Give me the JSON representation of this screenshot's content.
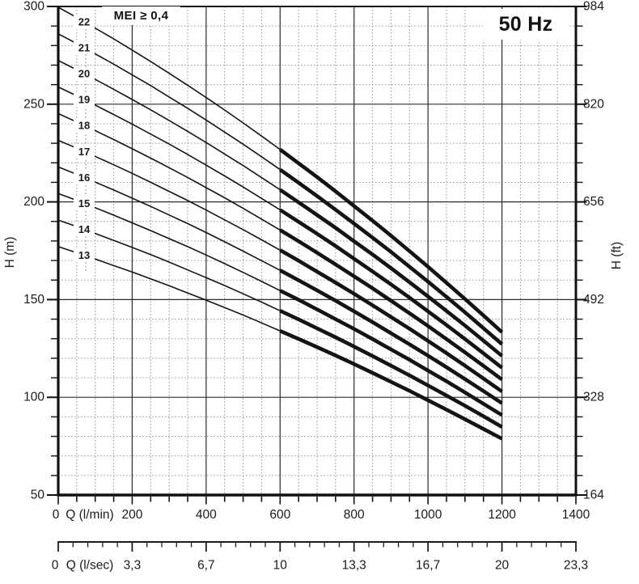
{
  "chart_data": {
    "type": "line",
    "title": "50 Hz",
    "annotation": "MEI ≥ 0,4",
    "axes": {
      "x_primary": {
        "label": "Q (l/min)",
        "min": 0,
        "max": 1400,
        "minor_step": 50,
        "major_ticks": [
          0,
          200,
          400,
          600,
          800,
          1000,
          1200,
          1400
        ],
        "tick_labels": [
          "0",
          "200",
          "400",
          "600",
          "800",
          "1000",
          "1200",
          "1400"
        ]
      },
      "x_secondary": {
        "label": "Q (l/sec)",
        "minor_divisions": 5,
        "tick_labels": [
          "0",
          "3,3",
          "6,7",
          "10",
          "13,3",
          "16,7",
          "20",
          "23,3"
        ]
      },
      "y_left": {
        "label": "H (m)",
        "min": 50,
        "max": 300,
        "major_step": 50,
        "minor_step": 10,
        "tick_values": [
          300,
          250,
          200,
          150,
          100,
          50
        ],
        "tick_labels": [
          "300",
          "250",
          "200",
          "150",
          "100",
          "50"
        ]
      },
      "y_right": {
        "label": "H (ft)",
        "at_m": [
          300,
          250,
          200,
          150,
          100,
          50
        ],
        "tick_labels": [
          "984",
          "820",
          "656",
          "492",
          "328",
          "164"
        ]
      }
    },
    "curve_style": {
      "gap_q": [
        45,
        95
      ],
      "bold_from_q": 600,
      "bold_to_q": 1200,
      "label_q": 70
    },
    "series": [
      {
        "name": "13",
        "points": [
          [
            0,
            177.1
          ],
          [
            45,
            174.3
          ],
          [
            95,
            171.1
          ],
          [
            150,
            167.4
          ],
          [
            200,
            164.1
          ],
          [
            250,
            160.6
          ],
          [
            300,
            157.1
          ],
          [
            350,
            153.4
          ],
          [
            400,
            149.7
          ],
          [
            450,
            145.9
          ],
          [
            500,
            142.1
          ],
          [
            550,
            138.1
          ],
          [
            600,
            134.0
          ],
          [
            650,
            129.9
          ],
          [
            700,
            125.7
          ],
          [
            750,
            121.4
          ],
          [
            800,
            117.0
          ],
          [
            850,
            112.5
          ],
          [
            900,
            107.9
          ],
          [
            950,
            103.3
          ],
          [
            1000,
            98.5
          ],
          [
            1050,
            93.7
          ],
          [
            1100,
            88.8
          ],
          [
            1150,
            83.8
          ],
          [
            1200,
            78.8
          ]
        ]
      },
      {
        "name": "14",
        "points": [
          [
            0,
            190.7
          ],
          [
            45,
            187.7
          ],
          [
            95,
            184.2
          ],
          [
            150,
            180.3
          ],
          [
            200,
            176.7
          ],
          [
            250,
            173.0
          ],
          [
            300,
            169.2
          ],
          [
            350,
            165.2
          ],
          [
            400,
            161.2
          ],
          [
            450,
            157.2
          ],
          [
            500,
            153.0
          ],
          [
            550,
            148.7
          ],
          [
            600,
            144.3
          ],
          [
            650,
            139.9
          ],
          [
            700,
            135.3
          ],
          [
            750,
            130.7
          ],
          [
            800,
            126.0
          ],
          [
            850,
            121.1
          ],
          [
            900,
            116.2
          ],
          [
            950,
            111.2
          ],
          [
            1000,
            106.1
          ],
          [
            1050,
            100.9
          ],
          [
            1100,
            95.7
          ],
          [
            1150,
            90.3
          ],
          [
            1200,
            84.8
          ]
        ]
      },
      {
        "name": "15",
        "points": [
          [
            0,
            204.3
          ],
          [
            45,
            201.1
          ],
          [
            95,
            197.4
          ],
          [
            150,
            193.2
          ],
          [
            200,
            189.3
          ],
          [
            250,
            185.3
          ],
          [
            300,
            181.2
          ],
          [
            350,
            177.1
          ],
          [
            400,
            172.8
          ],
          [
            450,
            168.4
          ],
          [
            500,
            163.9
          ],
          [
            550,
            159.3
          ],
          [
            600,
            154.6
          ],
          [
            650,
            149.9
          ],
          [
            700,
            145.0
          ],
          [
            750,
            140.0
          ],
          [
            800,
            135.0
          ],
          [
            850,
            129.8
          ],
          [
            900,
            124.5
          ],
          [
            950,
            119.2
          ],
          [
            1000,
            113.7
          ],
          [
            1050,
            108.2
          ],
          [
            1100,
            102.5
          ],
          [
            1150,
            96.7
          ],
          [
            1200,
            90.9
          ]
        ]
      },
      {
        "name": "16",
        "points": [
          [
            0,
            217.9
          ],
          [
            45,
            214.5
          ],
          [
            95,
            210.5
          ],
          [
            150,
            206.1
          ],
          [
            200,
            201.9
          ],
          [
            250,
            197.7
          ],
          [
            300,
            193.3
          ],
          [
            350,
            188.9
          ],
          [
            400,
            184.3
          ],
          [
            450,
            179.6
          ],
          [
            500,
            174.8
          ],
          [
            550,
            169.9
          ],
          [
            600,
            165.0
          ],
          [
            650,
            159.9
          ],
          [
            700,
            154.7
          ],
          [
            750,
            149.4
          ],
          [
            800,
            144.0
          ],
          [
            850,
            138.5
          ],
          [
            900,
            132.8
          ],
          [
            950,
            127.1
          ],
          [
            1000,
            121.3
          ],
          [
            1050,
            115.4
          ],
          [
            1100,
            109.3
          ],
          [
            1150,
            103.2
          ],
          [
            1200,
            97.0
          ]
        ]
      },
      {
        "name": "17",
        "points": [
          [
            0,
            231.5
          ],
          [
            45,
            227.9
          ],
          [
            95,
            223.7
          ],
          [
            150,
            219.0
          ],
          [
            200,
            214.6
          ],
          [
            250,
            210.0
          ],
          [
            300,
            205.4
          ],
          [
            350,
            200.7
          ],
          [
            400,
            195.8
          ],
          [
            450,
            190.8
          ],
          [
            500,
            185.8
          ],
          [
            550,
            180.6
          ],
          [
            600,
            175.3
          ],
          [
            650,
            169.9
          ],
          [
            700,
            164.3
          ],
          [
            750,
            158.7
          ],
          [
            800,
            153.0
          ],
          [
            850,
            147.1
          ],
          [
            900,
            141.1
          ],
          [
            950,
            135.1
          ],
          [
            1000,
            128.9
          ],
          [
            1050,
            122.6
          ],
          [
            1100,
            116.2
          ],
          [
            1150,
            109.6
          ],
          [
            1200,
            103.0
          ]
        ]
      },
      {
        "name": "18",
        "points": [
          [
            0,
            245.2
          ],
          [
            45,
            241.3
          ],
          [
            95,
            236.9
          ],
          [
            150,
            231.9
          ],
          [
            200,
            227.2
          ],
          [
            250,
            222.4
          ],
          [
            300,
            217.5
          ],
          [
            350,
            212.5
          ],
          [
            400,
            207.3
          ],
          [
            450,
            202.1
          ],
          [
            500,
            196.7
          ],
          [
            550,
            191.2
          ],
          [
            600,
            185.6
          ],
          [
            650,
            179.9
          ],
          [
            700,
            174.0
          ],
          [
            750,
            168.0
          ],
          [
            800,
            161.9
          ],
          [
            850,
            155.8
          ],
          [
            900,
            149.4
          ],
          [
            950,
            143.0
          ],
          [
            1000,
            136.5
          ],
          [
            1050,
            129.8
          ],
          [
            1100,
            123.0
          ],
          [
            1150,
            116.1
          ],
          [
            1200,
            109.1
          ]
        ]
      },
      {
        "name": "19",
        "points": [
          [
            0,
            258.8
          ],
          [
            45,
            254.7
          ],
          [
            95,
            250.0
          ],
          [
            150,
            244.7
          ],
          [
            200,
            239.8
          ],
          [
            250,
            234.7
          ],
          [
            300,
            229.6
          ],
          [
            350,
            224.3
          ],
          [
            400,
            218.8
          ],
          [
            450,
            213.3
          ],
          [
            500,
            207.6
          ],
          [
            550,
            201.8
          ],
          [
            600,
            195.9
          ],
          [
            650,
            189.8
          ],
          [
            700,
            183.7
          ],
          [
            750,
            177.4
          ],
          [
            800,
            170.9
          ],
          [
            850,
            164.4
          ],
          [
            900,
            157.8
          ],
          [
            950,
            151.0
          ],
          [
            1000,
            144.0
          ],
          [
            1050,
            137.0
          ],
          [
            1100,
            129.8
          ],
          [
            1150,
            122.5
          ],
          [
            1200,
            115.1
          ]
        ]
      },
      {
        "name": "20",
        "points": [
          [
            0,
            272.4
          ],
          [
            45,
            268.1
          ],
          [
            95,
            263.2
          ],
          [
            150,
            257.6
          ],
          [
            200,
            252.4
          ],
          [
            250,
            247.1
          ],
          [
            300,
            241.7
          ],
          [
            350,
            236.1
          ],
          [
            400,
            230.4
          ],
          [
            450,
            224.5
          ],
          [
            500,
            218.6
          ],
          [
            550,
            212.4
          ],
          [
            600,
            206.2
          ],
          [
            650,
            199.8
          ],
          [
            700,
            193.3
          ],
          [
            750,
            186.7
          ],
          [
            800,
            179.9
          ],
          [
            850,
            173.1
          ],
          [
            900,
            166.1
          ],
          [
            950,
            158.9
          ],
          [
            1000,
            151.6
          ],
          [
            1050,
            144.2
          ],
          [
            1100,
            136.7
          ],
          [
            1150,
            129.0
          ],
          [
            1200,
            121.2
          ]
        ]
      },
      {
        "name": "21",
        "points": [
          [
            0,
            286.0
          ],
          [
            45,
            281.5
          ],
          [
            95,
            276.3
          ],
          [
            150,
            270.5
          ],
          [
            200,
            265.0
          ],
          [
            250,
            259.5
          ],
          [
            300,
            253.7
          ],
          [
            350,
            247.9
          ],
          [
            400,
            241.9
          ],
          [
            450,
            235.7
          ],
          [
            500,
            229.5
          ],
          [
            550,
            223.1
          ],
          [
            600,
            216.5
          ],
          [
            650,
            209.8
          ],
          [
            700,
            203.0
          ],
          [
            750,
            196.0
          ],
          [
            800,
            188.9
          ],
          [
            850,
            181.7
          ],
          [
            900,
            174.4
          ],
          [
            950,
            166.8
          ],
          [
            1000,
            159.2
          ],
          [
            1050,
            151.4
          ],
          [
            1100,
            143.5
          ],
          [
            1150,
            135.4
          ],
          [
            1200,
            127.2
          ]
        ]
      },
      {
        "name": "22",
        "points": [
          [
            0,
            299.6
          ],
          [
            45,
            294.9
          ],
          [
            95,
            289.5
          ],
          [
            150,
            283.4
          ],
          [
            200,
            277.7
          ],
          [
            250,
            271.8
          ],
          [
            300,
            265.8
          ],
          [
            350,
            259.7
          ],
          [
            400,
            253.4
          ],
          [
            450,
            247.0
          ],
          [
            500,
            240.4
          ],
          [
            550,
            233.7
          ],
          [
            600,
            226.8
          ],
          [
            650,
            219.8
          ],
          [
            700,
            212.7
          ],
          [
            750,
            205.4
          ],
          [
            800,
            197.9
          ],
          [
            850,
            190.4
          ],
          [
            900,
            182.7
          ],
          [
            950,
            174.8
          ],
          [
            1000,
            166.8
          ],
          [
            1050,
            158.6
          ],
          [
            1100,
            150.3
          ],
          [
            1150,
            141.9
          ],
          [
            1200,
            133.3
          ]
        ]
      }
    ]
  }
}
